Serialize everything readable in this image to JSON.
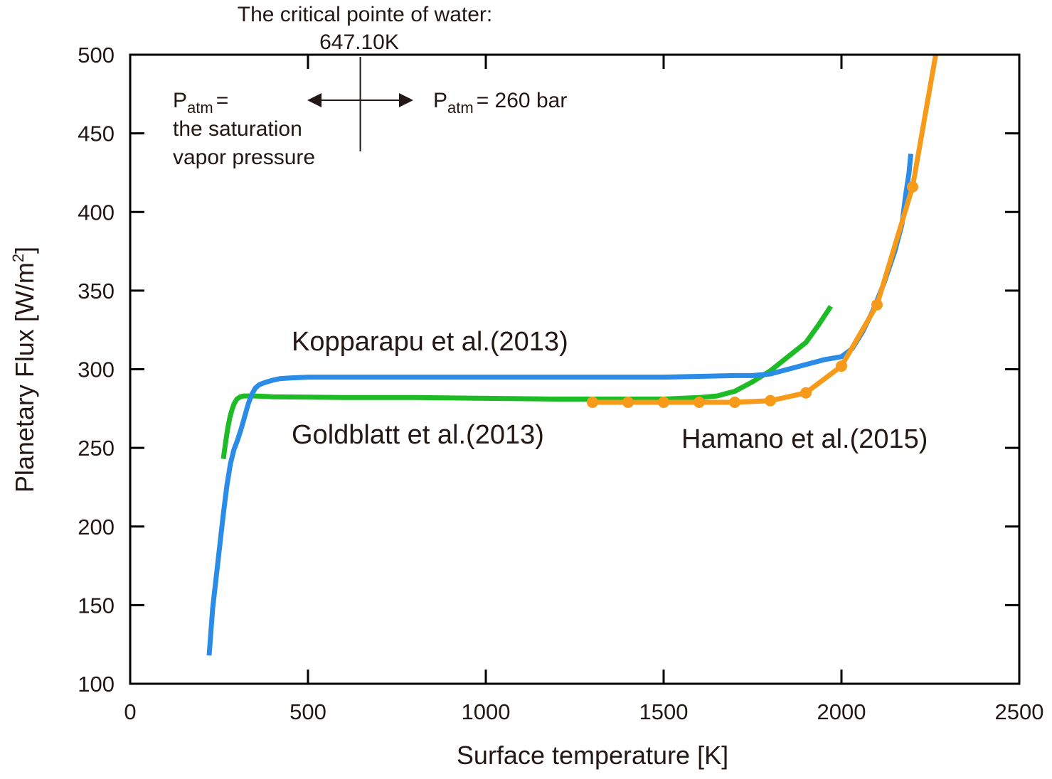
{
  "chart_data": {
    "type": "line",
    "xlabel": "Surface temperature [K]",
    "ylabel": "Planetary Flux [W/m",
    "ylabel_sup": "2",
    "ylabel_tail": "]",
    "xlim": [
      0,
      2500
    ],
    "ylim": [
      100,
      500
    ],
    "xticks": [
      0,
      500,
      1000,
      1500,
      2000,
      2500
    ],
    "yticks": [
      100,
      150,
      200,
      250,
      300,
      350,
      400,
      450,
      500
    ],
    "grid": false,
    "series": [
      {
        "name": "Kopparapu et al.(2013)",
        "color": "#2b8ce8",
        "markers": false,
        "x": [
          222,
          226,
          232,
          242,
          252,
          262,
          272,
          282,
          292,
          302,
          312,
          322,
          332,
          342,
          352,
          362,
          372,
          385,
          400,
          420,
          450,
          500,
          600,
          700,
          900,
          1100,
          1300,
          1500,
          1600,
          1700,
          1750,
          1800,
          1850,
          1900,
          1950,
          2000,
          2030,
          2060,
          2090,
          2120,
          2150,
          2170,
          2180,
          2190,
          2195
        ],
        "y": [
          118,
          130,
          148,
          168,
          188,
          208,
          226,
          240,
          249,
          255,
          262,
          270,
          278,
          284,
          288,
          290,
          291,
          292,
          293,
          294,
          294.5,
          295,
          295,
          295,
          295,
          295,
          295,
          295,
          295.5,
          296,
          296,
          297,
          300,
          303,
          306,
          308,
          313,
          324,
          338,
          355,
          375,
          392,
          410,
          425,
          437
        ]
      },
      {
        "name": "Goldblatt et al.(2013)",
        "color": "#1dbb25",
        "markers": false,
        "x": [
          262,
          268,
          274,
          280,
          286,
          292,
          300,
          310,
          320,
          335,
          350,
          400,
          600,
          800,
          1000,
          1200,
          1400,
          1500,
          1600,
          1650,
          1700,
          1750,
          1800,
          1850,
          1900,
          1935,
          1970
        ],
        "y": [
          243,
          253,
          262,
          269,
          274,
          278,
          281,
          282.5,
          283,
          283,
          283,
          282.5,
          282,
          282,
          281.5,
          281,
          281,
          281,
          282,
          283,
          286,
          292,
          299,
          308,
          317,
          328,
          340
        ]
      },
      {
        "name": "Hamano et al.(2015)",
        "color": "#f79a19",
        "markers": true,
        "x": [
          1300,
          1400,
          1500,
          1600,
          1700,
          1800,
          1900,
          2000,
          2100,
          2200,
          2265
        ],
        "y": [
          279,
          279,
          279,
          279,
          279,
          280,
          285,
          302,
          341,
          416,
          500
        ],
        "marker_x": [
          1300,
          1400,
          1500,
          1600,
          1700,
          1800,
          1900,
          2000,
          2100,
          2200
        ]
      }
    ],
    "annotations": {
      "critical_title": "The critical pointe of water:",
      "critical_value": "647.10K",
      "critical_x": 647.1,
      "left_p": "P",
      "left_sub": "atm",
      "left_eq": "=",
      "left_line2": "the saturation",
      "left_line3": "vapor pressure",
      "right_p": "P",
      "right_sub": "atm",
      "right_rest": "= 260 bar"
    }
  }
}
